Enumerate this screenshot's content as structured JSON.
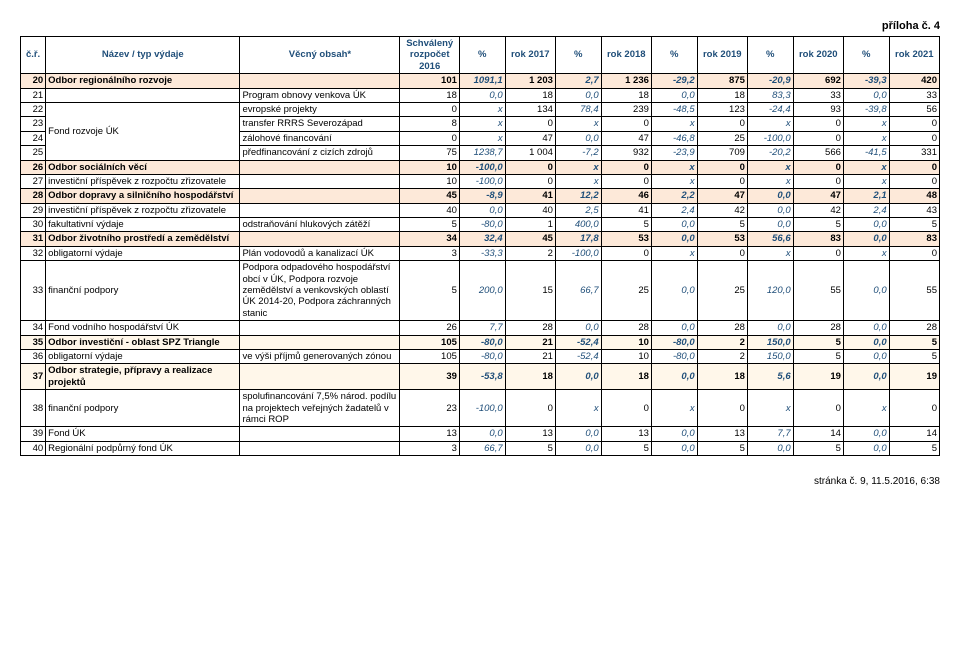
{
  "header_right": "příloha č. 4",
  "footer": "stránka č. 9, 11.5.2016, 6:38",
  "table": {
    "columns": [
      "č.ř.",
      "Název / typ výdaje",
      "Věcný obsah*",
      "Schválený rozpočet 2016",
      "%",
      "rok 2017",
      "%",
      "rok 2018",
      "%",
      "rok 2019",
      "%",
      "rok 2020",
      "%",
      "rok 2021"
    ],
    "groups": [
      {
        "start": 2,
        "span": 4,
        "label": "Fond rozvoje ÚK"
      }
    ],
    "rows": [
      {
        "n": 20,
        "name": "Odbor regionálního rozvoje",
        "obsah": "",
        "sr": "101",
        "p1": "1091,1",
        "r17": "1 203",
        "p2": "2,7",
        "r18": "1 236",
        "p3": "-29,2",
        "r19": "875",
        "p4": "-20,9",
        "r20": "692",
        "p5": "-39,3",
        "r21": "420",
        "cls": "section-a"
      },
      {
        "n": 21,
        "name": "",
        "obsah": "Program obnovy venkova ÚK",
        "sr": "18",
        "p1": "0,0",
        "r17": "18",
        "p2": "0,0",
        "r18": "18",
        "p3": "0,0",
        "r19": "18",
        "p4": "83,3",
        "r20": "33",
        "p5": "0,0",
        "r21": "33",
        "cls": ""
      },
      {
        "n": 22,
        "name": "",
        "obsah": "evropské projekty",
        "sr": "0",
        "p1": "x",
        "r17": "134",
        "p2": "78,4",
        "r18": "239",
        "p3": "-48,5",
        "r19": "123",
        "p4": "-24,4",
        "r20": "93",
        "p5": "-39,8",
        "r21": "56",
        "cls": ""
      },
      {
        "n": 23,
        "name": "",
        "obsah": "transfer RRRS Severozápad",
        "sr": "8",
        "p1": "x",
        "r17": "0",
        "p2": "x",
        "r18": "0",
        "p3": "x",
        "r19": "0",
        "p4": "x",
        "r20": "0",
        "p5": "x",
        "r21": "0",
        "cls": ""
      },
      {
        "n": 24,
        "name": "",
        "obsah": "zálohové financování",
        "sr": "0",
        "p1": "x",
        "r17": "47",
        "p2": "0,0",
        "r18": "47",
        "p3": "-46,8",
        "r19": "25",
        "p4": "-100,0",
        "r20": "0",
        "p5": "x",
        "r21": "0",
        "cls": ""
      },
      {
        "n": 25,
        "name": "",
        "obsah": "předfinancování z cizích zdrojů",
        "sr": "75",
        "p1": "1238,7",
        "r17": "1 004",
        "p2": "-7,2",
        "r18": "932",
        "p3": "-23,9",
        "r19": "709",
        "p4": "-20,2",
        "r20": "566",
        "p5": "-41,5",
        "r21": "331",
        "cls": ""
      },
      {
        "n": 26,
        "name": "Odbor sociálních věcí",
        "obsah": "",
        "sr": "10",
        "p1": "-100,0",
        "r17": "0",
        "p2": "x",
        "r18": "0",
        "p3": "x",
        "r19": "0",
        "p4": "x",
        "r20": "0",
        "p5": "x",
        "r21": "0",
        "cls": "section-a"
      },
      {
        "n": 27,
        "name": "investiční příspěvek z rozpočtu zřizovatele",
        "obsah": "",
        "sr": "10",
        "p1": "-100,0",
        "r17": "0",
        "p2": "x",
        "r18": "0",
        "p3": "x",
        "r19": "0",
        "p4": "x",
        "r20": "0",
        "p5": "x",
        "r21": "0",
        "cls": ""
      },
      {
        "n": 28,
        "name": "Odbor dopravy a silničního hospodářství",
        "obsah": "",
        "sr": "45",
        "p1": "-8,9",
        "r17": "41",
        "p2": "12,2",
        "r18": "46",
        "p3": "2,2",
        "r19": "47",
        "p4": "0,0",
        "r20": "47",
        "p5": "2,1",
        "r21": "48",
        "cls": "section-a"
      },
      {
        "n": 29,
        "name": "investiční příspěvek z rozpočtu zřizovatele",
        "obsah": "",
        "sr": "40",
        "p1": "0,0",
        "r17": "40",
        "p2": "2,5",
        "r18": "41",
        "p3": "2,4",
        "r19": "42",
        "p4": "0,0",
        "r20": "42",
        "p5": "2,4",
        "r21": "43",
        "cls": ""
      },
      {
        "n": 30,
        "name": "fakultativní výdaje",
        "obsah": "odstraňování hlukových zátěží",
        "sr": "5",
        "p1": "-80,0",
        "r17": "1",
        "p2": "400,0",
        "r18": "5",
        "p3": "0,0",
        "r19": "5",
        "p4": "0,0",
        "r20": "5",
        "p5": "0,0",
        "r21": "5",
        "cls": ""
      },
      {
        "n": 31,
        "name": "Odbor životního prostředí a zemědělství",
        "obsah": "",
        "sr": "34",
        "p1": "32,4",
        "r17": "45",
        "p2": "17,8",
        "r18": "53",
        "p3": "0,0",
        "r19": "53",
        "p4": "56,6",
        "r20": "83",
        "p5": "0,0",
        "r21": "83",
        "cls": "section-a"
      },
      {
        "n": 32,
        "name": "obligatorní výdaje",
        "obsah": "Plán vodovodů a kanalizací ÚK",
        "sr": "3",
        "p1": "-33,3",
        "r17": "2",
        "p2": "-100,0",
        "r18": "0",
        "p3": "x",
        "r19": "0",
        "p4": "x",
        "r20": "0",
        "p5": "x",
        "r21": "0",
        "cls": ""
      },
      {
        "n": 33,
        "name": "finanční podpory",
        "obsah": "Podpora odpadového hospodářství obcí v ÚK, Podpora rozvoje zemědělství a venkovských oblastí ÚK 2014-20, Podpora záchranných stanic",
        "sr": "5",
        "p1": "200,0",
        "r17": "15",
        "p2": "66,7",
        "r18": "25",
        "p3": "0,0",
        "r19": "25",
        "p4": "120,0",
        "r20": "55",
        "p5": "0,0",
        "r21": "55",
        "cls": ""
      },
      {
        "n": 34,
        "name": "Fond vodního hospodářství ÚK",
        "obsah": "",
        "sr": "26",
        "p1": "7,7",
        "r17": "28",
        "p2": "0,0",
        "r18": "28",
        "p3": "0,0",
        "r19": "28",
        "p4": "0,0",
        "r20": "28",
        "p5": "0,0",
        "r21": "28",
        "cls": ""
      },
      {
        "n": 35,
        "name": "Odbor investiční - oblast SPZ Triangle",
        "obsah": "",
        "sr": "105",
        "p1": "-80,0",
        "r17": "21",
        "p2": "-52,4",
        "r18": "10",
        "p3": "-80,0",
        "r19": "2",
        "p4": "150,0",
        "r20": "5",
        "p5": "0,0",
        "r21": "5",
        "cls": "section-b"
      },
      {
        "n": 36,
        "name": "obligatorní výdaje",
        "obsah": "ve výši příjmů generovaných zónou",
        "sr": "105",
        "p1": "-80,0",
        "r17": "21",
        "p2": "-52,4",
        "r18": "10",
        "p3": "-80,0",
        "r19": "2",
        "p4": "150,0",
        "r20": "5",
        "p5": "0,0",
        "r21": "5",
        "cls": ""
      },
      {
        "n": 37,
        "name": "Odbor strategie, přípravy a realizace projektů",
        "obsah": "",
        "sr": "39",
        "p1": "-53,8",
        "r17": "18",
        "p2": "0,0",
        "r18": "18",
        "p3": "0,0",
        "r19": "18",
        "p4": "5,6",
        "r20": "19",
        "p5": "0,0",
        "r21": "19",
        "cls": "section-b"
      },
      {
        "n": 38,
        "name": "finanční podpory",
        "obsah": "spolufinancování 7,5% národ. podílu na projektech veřejných žadatelů v rámci ROP",
        "sr": "23",
        "p1": "-100,0",
        "r17": "0",
        "p2": "x",
        "r18": "0",
        "p3": "x",
        "r19": "0",
        "p4": "x",
        "r20": "0",
        "p5": "x",
        "r21": "0",
        "cls": ""
      },
      {
        "n": 39,
        "name": "Fond ÚK",
        "obsah": "",
        "sr": "13",
        "p1": "0,0",
        "r17": "13",
        "p2": "0,0",
        "r18": "13",
        "p3": "0,0",
        "r19": "13",
        "p4": "7,7",
        "r20": "14",
        "p5": "0,0",
        "r21": "14",
        "cls": ""
      },
      {
        "n": 40,
        "name": "Regionální podpůrný fond ÚK",
        "obsah": "",
        "sr": "3",
        "p1": "66,7",
        "r17": "5",
        "p2": "0,0",
        "r18": "5",
        "p3": "0,0",
        "r19": "5",
        "p4": "0,0",
        "r20": "5",
        "p5": "0,0",
        "r21": "5",
        "cls": ""
      }
    ]
  }
}
